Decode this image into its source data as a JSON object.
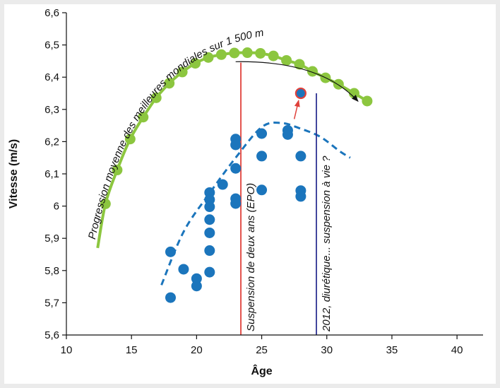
{
  "chart_data": {
    "type": "scatter",
    "title": "",
    "xlabel": "Âge",
    "ylabel": "Vitesse (m/s)",
    "xlim": [
      10,
      42
    ],
    "ylim": [
      5.6,
      6.6
    ],
    "xticks": [
      10,
      15,
      20,
      25,
      30,
      35,
      40
    ],
    "yticks": [
      5.6,
      5.7,
      5.8,
      5.9,
      6.0,
      6.1,
      6.2,
      6.3,
      6.4,
      6.5,
      6.6
    ],
    "ytick_labels": [
      "5,6",
      "5,7",
      "5,8",
      "5,9",
      "6",
      "6,1",
      "6,2",
      "6,3",
      "6,4",
      "6,5",
      "6,6"
    ],
    "xtick_labels": [
      "10",
      "15",
      "20",
      "25",
      "30",
      "35",
      "40"
    ],
    "grid": false,
    "colors": {
      "world": "#8cc63f",
      "athlete": "#1b75bc",
      "epo_line": "#e0413b",
      "diuretic_line": "#2e3192",
      "highlight_ring": "#e0413b"
    },
    "world_progression": {
      "label": "Progression moyenne des meilleures mondiales sur 1 500 m",
      "curve_start": [
        12.4,
        5.87
      ],
      "points": [
        [
          13.0,
          6.007
        ],
        [
          13.9,
          6.112
        ],
        [
          14.9,
          6.208
        ],
        [
          15.9,
          6.276
        ],
        [
          16.9,
          6.336
        ],
        [
          17.9,
          6.381
        ],
        [
          18.9,
          6.416
        ],
        [
          19.9,
          6.443
        ],
        [
          20.9,
          6.461
        ],
        [
          21.9,
          6.47
        ],
        [
          22.9,
          6.475
        ],
        [
          23.9,
          6.476
        ],
        [
          24.9,
          6.474
        ],
        [
          25.9,
          6.466
        ],
        [
          26.9,
          6.452
        ],
        [
          27.9,
          6.44
        ],
        [
          28.9,
          6.418
        ],
        [
          29.9,
          6.398
        ],
        [
          30.9,
          6.378
        ],
        [
          32.1,
          6.35
        ],
        [
          33.1,
          6.326
        ]
      ]
    },
    "athlete_trend": [
      [
        17.3,
        5.755
      ],
      [
        19.0,
        5.92
      ],
      [
        21.0,
        6.04
      ],
      [
        23.0,
        6.15
      ],
      [
        25.0,
        6.245
      ],
      [
        26.5,
        6.258
      ],
      [
        28.0,
        6.24
      ],
      [
        29.5,
        6.215
      ],
      [
        31.0,
        6.17
      ],
      [
        31.8,
        6.15
      ]
    ],
    "athlete_points": [
      [
        18.0,
        5.858
      ],
      [
        18.0,
        5.716
      ],
      [
        19.0,
        5.804
      ],
      [
        20.0,
        5.775
      ],
      [
        20.0,
        5.752
      ],
      [
        21.0,
        6.042
      ],
      [
        21.0,
        6.02
      ],
      [
        21.0,
        5.998
      ],
      [
        21.0,
        5.958
      ],
      [
        21.0,
        5.917
      ],
      [
        21.0,
        5.862
      ],
      [
        21.0,
        5.795
      ],
      [
        22.0,
        6.067
      ],
      [
        23.0,
        6.208
      ],
      [
        23.0,
        6.19
      ],
      [
        23.0,
        6.117
      ],
      [
        23.0,
        6.023
      ],
      [
        23.0,
        6.008
      ],
      [
        25.0,
        6.225
      ],
      [
        25.0,
        6.155
      ],
      [
        25.0,
        6.05
      ],
      [
        27.0,
        6.235
      ],
      [
        27.0,
        6.222
      ],
      [
        28.0,
        6.155
      ],
      [
        28.0,
        6.048
      ],
      [
        28.0,
        6.03
      ]
    ],
    "highlighted_point": [
      28.0,
      6.35
    ],
    "highlight_arrow_from": [
      27.5,
      6.27
    ],
    "world_decline_arrow": {
      "from": [
        23.0,
        6.448
      ],
      "ctrl": [
        29.5,
        6.452
      ],
      "to": [
        32.4,
        6.325
      ]
    },
    "vertical_lines": [
      {
        "x": 23.4,
        "label": "Suspension de deux ans (EPO)"
      },
      {
        "x": 29.2,
        "label": "2012, diurétique... suspension à vie ?"
      }
    ]
  }
}
